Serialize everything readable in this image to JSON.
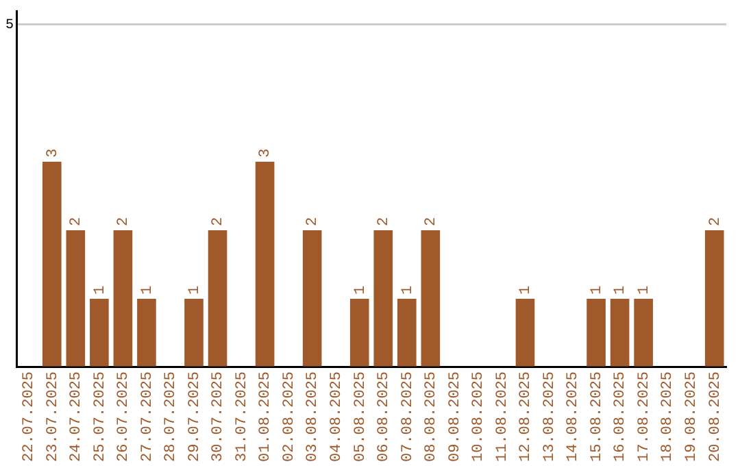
{
  "chart_data": {
    "type": "bar",
    "categories": [
      "22.07.2025",
      "23.07.2025",
      "24.07.2025",
      "25.07.2025",
      "26.07.2025",
      "27.07.2025",
      "28.07.2025",
      "29.07.2025",
      "30.07.2025",
      "31.07.2025",
      "01.08.2025",
      "02.08.2025",
      "03.08.2025",
      "04.08.2025",
      "05.08.2025",
      "06.08.2025",
      "07.08.2025",
      "08.08.2025",
      "09.08.2025",
      "10.08.2025",
      "11.08.2025",
      "12.08.2025",
      "13.08.2025",
      "14.08.2025",
      "15.08.2025",
      "16.08.2025",
      "17.08.2025",
      "18.08.2025",
      "19.08.2025",
      "20.08.2025"
    ],
    "values": [
      0,
      3,
      2,
      1,
      2,
      1,
      0,
      1,
      2,
      0,
      3,
      0,
      2,
      0,
      1,
      2,
      1,
      2,
      0,
      0,
      0,
      1,
      0,
      0,
      1,
      1,
      1,
      0,
      0,
      2
    ],
    "value_labels": [
      null,
      "3",
      "2",
      "1",
      "2",
      "1",
      null,
      "1",
      "2",
      null,
      "3",
      null,
      "2",
      null,
      "1",
      "2",
      "1",
      "2",
      null,
      null,
      null,
      "1",
      null,
      null,
      "1",
      "1",
      "1",
      null,
      null,
      "2"
    ],
    "color": "#a0592a",
    "ylim": [
      0,
      5.2
    ],
    "yticks": [
      {
        "value": 0,
        "label": null
      },
      5
    ],
    "grid": "y",
    "legend": false
  }
}
